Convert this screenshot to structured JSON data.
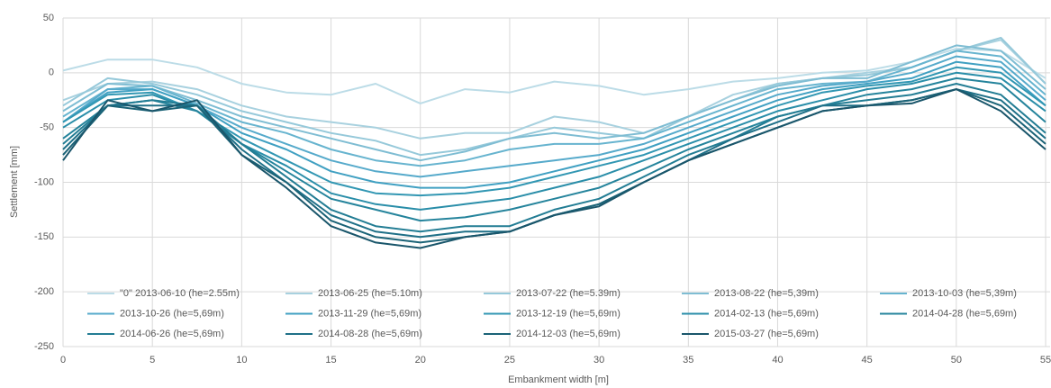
{
  "chart_data": {
    "type": "line",
    "x_label": "Embankment width [m]",
    "y_label": "Settlement [mm]",
    "xlim": [
      0,
      55.25
    ],
    "xticks": [
      0,
      5,
      10,
      15,
      20,
      25,
      30,
      35,
      40,
      45,
      50,
      55
    ],
    "ylim": [
      -250,
      50
    ],
    "yticks": [
      -250,
      -200,
      -150,
      -100,
      -50,
      0,
      50
    ],
    "grid": true,
    "legend": "bottom",
    "x": [
      0,
      2.5,
      5,
      7.5,
      10,
      12.5,
      15,
      17.5,
      20,
      22.5,
      25,
      27.5,
      30,
      32.5,
      35,
      37.5,
      40,
      42.5,
      45,
      47.5,
      50,
      52.5,
      55
    ],
    "series": [
      {
        "name": "\"0\" 2013-06-10 (he=2.55m)",
        "color": "#bcdce7",
        "values": [
          2,
          12,
          12,
          5,
          -10,
          -18,
          -20,
          -10,
          -28,
          -15,
          -18,
          -8,
          -12,
          -20,
          -15,
          -8,
          -5,
          0,
          2,
          10,
          22,
          20,
          -5
        ]
      },
      {
        "name": "2013-06-25 (he=5.10m)",
        "color": "#a8d1df",
        "values": [
          -25,
          -10,
          -8,
          -15,
          -30,
          -40,
          -45,
          -50,
          -60,
          -55,
          -55,
          -40,
          -45,
          -55,
          -40,
          -20,
          -10,
          -5,
          0,
          5,
          20,
          30,
          -10
        ]
      },
      {
        "name": "2013-07-22 (he=5.39m)",
        "color": "#96c9da",
        "values": [
          -30,
          -5,
          -10,
          -20,
          -35,
          -45,
          -55,
          -62,
          -75,
          -70,
          -60,
          -50,
          -55,
          -60,
          -40,
          -25,
          -10,
          -5,
          -2,
          5,
          20,
          32,
          -10
        ]
      },
      {
        "name": "2013-08-22 (he=5,39m)",
        "color": "#7fbdd3",
        "values": [
          -35,
          -10,
          -12,
          -25,
          -40,
          -50,
          -60,
          -70,
          -80,
          -72,
          -60,
          -55,
          -60,
          -55,
          -40,
          -25,
          -12,
          -5,
          -5,
          10,
          25,
          20,
          -15
        ]
      },
      {
        "name": "2013-10-03 (he=5,39m)",
        "color": "#67b4cf",
        "values": [
          -40,
          -15,
          -12,
          -28,
          -45,
          -55,
          -70,
          -80,
          -85,
          -80,
          -70,
          -65,
          -65,
          -60,
          -45,
          -30,
          -15,
          -10,
          -8,
          5,
          20,
          15,
          -20
        ]
      },
      {
        "name": "2013-10-26 (he=5,69m)",
        "color": "#56aacb",
        "values": [
          -45,
          -15,
          -15,
          -30,
          -50,
          -65,
          -80,
          -90,
          -95,
          -90,
          -85,
          -80,
          -75,
          -65,
          -50,
          -35,
          -20,
          -12,
          -8,
          0,
          15,
          10,
          -25
        ]
      },
      {
        "name": "2013-11-29 (he=5,69m)",
        "color": "#40a0c2",
        "values": [
          -45,
          -18,
          -15,
          -30,
          -55,
          -70,
          -90,
          -100,
          -105,
          -105,
          -100,
          -90,
          -80,
          -70,
          -55,
          -40,
          -25,
          -15,
          -10,
          -5,
          10,
          5,
          -30
        ]
      },
      {
        "name": "2013-12-19 (he=5,69m)",
        "color": "#3297b3",
        "values": [
          -45,
          -20,
          -18,
          -35,
          -60,
          -80,
          -100,
          -110,
          -112,
          -110,
          -105,
          -95,
          -85,
          -75,
          -60,
          -45,
          -30,
          -18,
          -12,
          -8,
          5,
          0,
          -30
        ]
      },
      {
        "name": "2014-02-13 (he=5,69m)",
        "color": "#2a8ea9",
        "values": [
          -50,
          -25,
          -20,
          -35,
          -65,
          -85,
          -110,
          -120,
          -125,
          -120,
          -115,
          -105,
          -95,
          -80,
          -65,
          -50,
          -35,
          -25,
          -15,
          -10,
          0,
          -5,
          -35
        ]
      },
      {
        "name": "2014-04-28 (he=5,69m)",
        "color": "#25849c",
        "values": [
          -60,
          -30,
          -25,
          -35,
          -65,
          -90,
          -115,
          -125,
          -135,
          -132,
          -125,
          -115,
          -105,
          -88,
          -70,
          -55,
          -40,
          -30,
          -20,
          -15,
          -5,
          -10,
          -45
        ]
      },
      {
        "name": "2014-06-26 (he=5,69m)",
        "color": "#237d94",
        "values": [
          -65,
          -30,
          -25,
          -30,
          -65,
          -95,
          -125,
          -140,
          -145,
          -140,
          -140,
          -125,
          -115,
          -95,
          -75,
          -60,
          -40,
          -30,
          -25,
          -20,
          -10,
          -20,
          -55
        ]
      },
      {
        "name": "2014-08-28 (he=5,69m)",
        "color": "#1f7088",
        "values": [
          -70,
          -30,
          -30,
          -30,
          -70,
          -100,
          -130,
          -145,
          -150,
          -145,
          -145,
          -130,
          -120,
          -100,
          -80,
          -60,
          -45,
          -30,
          -30,
          -25,
          -15,
          -25,
          -60
        ]
      },
      {
        "name": "2014-12-03 (he=5,69m)",
        "color": "#1b6377",
        "values": [
          -75,
          -30,
          -35,
          -30,
          -75,
          -100,
          -135,
          -150,
          -155,
          -150,
          -145,
          -130,
          -120,
          -100,
          -80,
          -65,
          -50,
          -35,
          -30,
          -25,
          -15,
          -30,
          -65
        ]
      },
      {
        "name": "2015-03-27 (he=5,69m)",
        "color": "#1a566b",
        "values": [
          -80,
          -25,
          -35,
          -25,
          -75,
          -105,
          -140,
          -155,
          -160,
          -150,
          -145,
          -130,
          -122,
          -100,
          -80,
          -65,
          -50,
          -35,
          -30,
          -28,
          -15,
          -35,
          -70
        ]
      }
    ]
  }
}
